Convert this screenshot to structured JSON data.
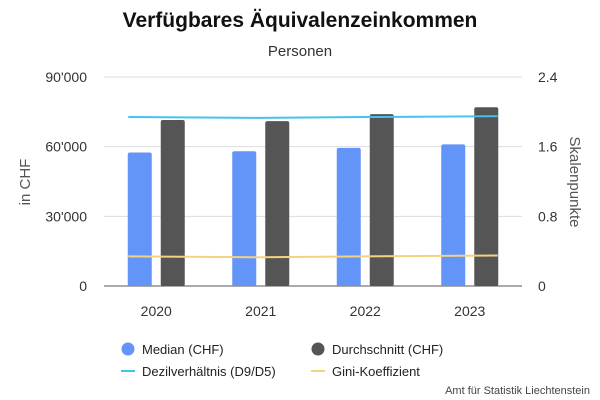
{
  "chart_data": {
    "type": "bar",
    "title": "Verfügbares Äquivalenzeinkommen",
    "subtitle": "Personen",
    "categories": [
      "2020",
      "2021",
      "2022",
      "2023"
    ],
    "ylabel": "in CHF",
    "y2label": "Skalenpunkte",
    "ylim": [
      0,
      90000
    ],
    "y2lim": [
      0,
      2.4
    ],
    "yticks": [
      "0",
      "30'000",
      "60'000",
      "90'000"
    ],
    "y2ticks": [
      "0",
      "0.8",
      "1.6",
      "2.4"
    ],
    "grid": true,
    "legend_position": "bottom",
    "series": [
      {
        "name": "Median (CHF)",
        "kind": "bar",
        "axis": "left",
        "color": "#6394f8",
        "values": [
          57500,
          58000,
          59500,
          61000
        ]
      },
      {
        "name": "Durchschnitt (CHF)",
        "kind": "bar",
        "axis": "left",
        "color": "#555555",
        "values": [
          71500,
          71000,
          74000,
          77000
        ]
      },
      {
        "name": "Dezilverhältnis (D9/D5)",
        "kind": "line",
        "axis": "right",
        "color": "#42c4ec",
        "values": [
          1.94,
          1.93,
          1.94,
          1.95
        ]
      },
      {
        "name": "Gini-Koeffizient",
        "kind": "line",
        "axis": "right",
        "color": "#f3d37f",
        "values": [
          0.34,
          0.33,
          0.34,
          0.35
        ]
      }
    ],
    "source": "Amt für Statistik Liechtenstein"
  }
}
